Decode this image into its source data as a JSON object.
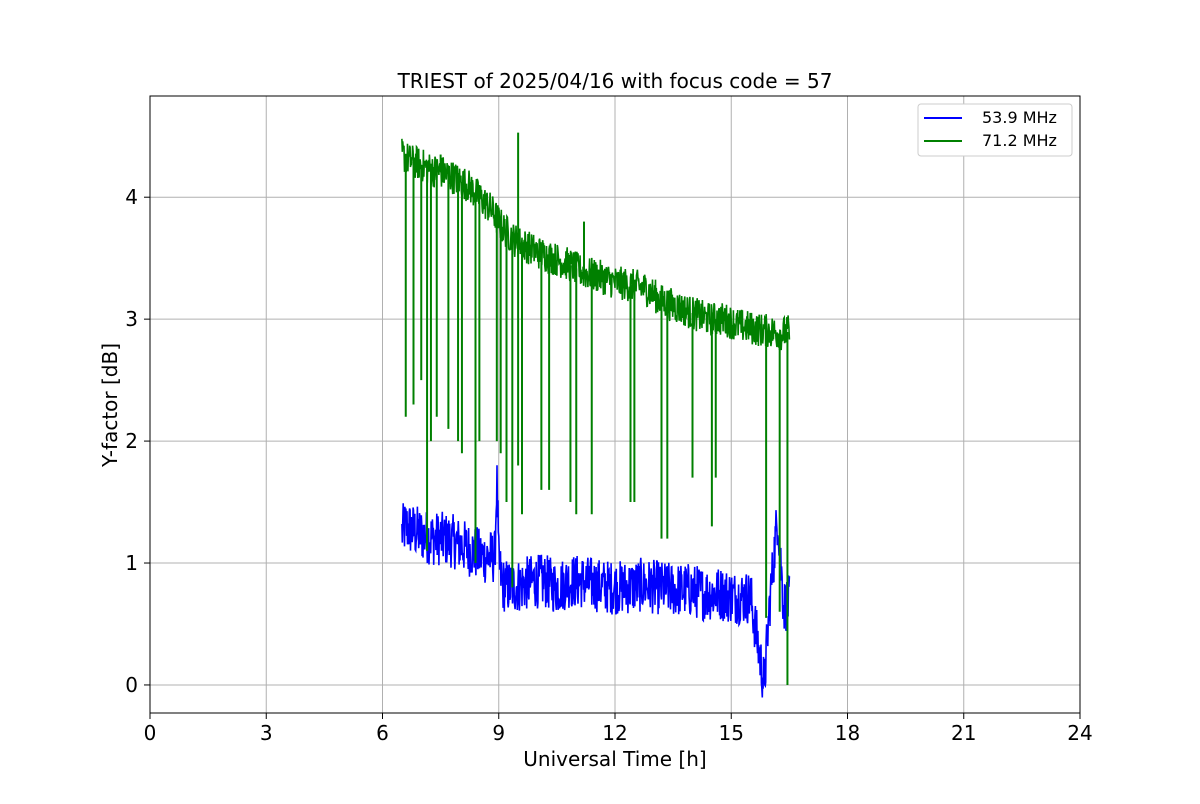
{
  "chart_data": {
    "type": "line",
    "title": "TRIEST of 2025/04/16 with focus code = 57",
    "xlabel": "Universal Time [h]",
    "ylabel": "Y-factor [dB]",
    "xlim": [
      0,
      24
    ],
    "ylim": [
      -0.23,
      4.83
    ],
    "xticks": [
      0,
      3,
      6,
      9,
      12,
      15,
      18,
      21,
      24
    ],
    "yticks": [
      0,
      1,
      2,
      3,
      4
    ],
    "grid": true,
    "legend": "top-right",
    "series": [
      {
        "name": "53.9 MHz",
        "color": "#0000ff",
        "x": [
          6.5,
          6.6,
          6.7,
          6.9,
          7.1,
          7.3,
          7.5,
          7.8,
          8.0,
          8.3,
          8.6,
          8.9,
          8.95,
          9.0,
          9.1,
          9.3,
          9.6,
          9.9,
          10.2,
          10.5,
          10.8,
          11.1,
          11.5,
          11.9,
          12.3,
          12.7,
          13.1,
          13.5,
          13.9,
          14.3,
          14.7,
          15.1,
          15.5,
          15.85,
          16.0,
          16.2,
          16.35,
          16.5
        ],
        "y": [
          1.25,
          1.3,
          1.28,
          1.25,
          1.22,
          1.2,
          1.2,
          1.18,
          1.15,
          1.1,
          1.05,
          1.05,
          1.7,
          1.0,
          0.82,
          0.8,
          0.82,
          0.85,
          0.85,
          0.8,
          0.85,
          0.85,
          0.82,
          0.8,
          0.8,
          0.82,
          0.8,
          0.78,
          0.78,
          0.75,
          0.75,
          0.72,
          0.72,
          0.0,
          0.7,
          1.4,
          0.65,
          0.68
        ]
      },
      {
        "name": "71.2 MHz",
        "color": "#008000",
        "x": [
          6.5,
          6.7,
          6.9,
          7.1,
          7.3,
          7.6,
          7.9,
          8.2,
          8.5,
          8.8,
          9.1,
          9.4,
          9.7,
          10.0,
          10.4,
          10.8,
          11.2,
          11.6,
          12.0,
          12.4,
          12.8,
          13.2,
          13.6,
          14.0,
          14.4,
          14.8,
          15.2,
          15.6,
          16.0,
          16.3,
          16.5
        ],
        "y": [
          4.35,
          4.3,
          4.28,
          4.25,
          4.22,
          4.2,
          4.15,
          4.1,
          4.0,
          3.9,
          3.75,
          3.65,
          3.6,
          3.55,
          3.5,
          3.45,
          3.38,
          3.35,
          3.3,
          3.28,
          3.25,
          3.15,
          3.1,
          3.05,
          3.0,
          3.0,
          2.95,
          2.92,
          2.9,
          2.88,
          2.9
        ]
      }
    ],
    "spikes": [
      {
        "series": 1,
        "x": [
          6.6,
          6.8,
          7.0,
          7.15,
          7.25,
          7.4,
          7.7,
          7.95,
          8.05,
          8.4,
          8.5,
          8.95,
          9.05,
          9.2,
          9.35,
          9.5,
          9.6,
          10.1,
          10.3,
          10.85,
          11.0,
          11.4,
          12.4,
          12.5,
          13.2,
          13.35,
          14.0,
          14.5,
          14.6,
          15.9,
          16.25,
          16.45
        ],
        "y": [
          2.2,
          2.3,
          2.5,
          1.1,
          2.0,
          2.2,
          2.1,
          2.0,
          1.9,
          1.0,
          2.0,
          2.0,
          1.9,
          1.5,
          0.8,
          1.8,
          1.4,
          1.6,
          1.6,
          1.5,
          1.4,
          1.4,
          1.5,
          1.5,
          1.2,
          1.2,
          1.7,
          1.3,
          1.7,
          0.55,
          0.6,
          0.0
        ]
      },
      {
        "series": 1,
        "x": [
          7.5,
          9.5,
          11.2,
          8.5
        ],
        "y": [
          4.35,
          4.53,
          3.8,
          4.1
        ],
        "up": true
      }
    ]
  },
  "legend": {
    "items": [
      "53.9 MHz",
      "71.2 MHz"
    ]
  }
}
